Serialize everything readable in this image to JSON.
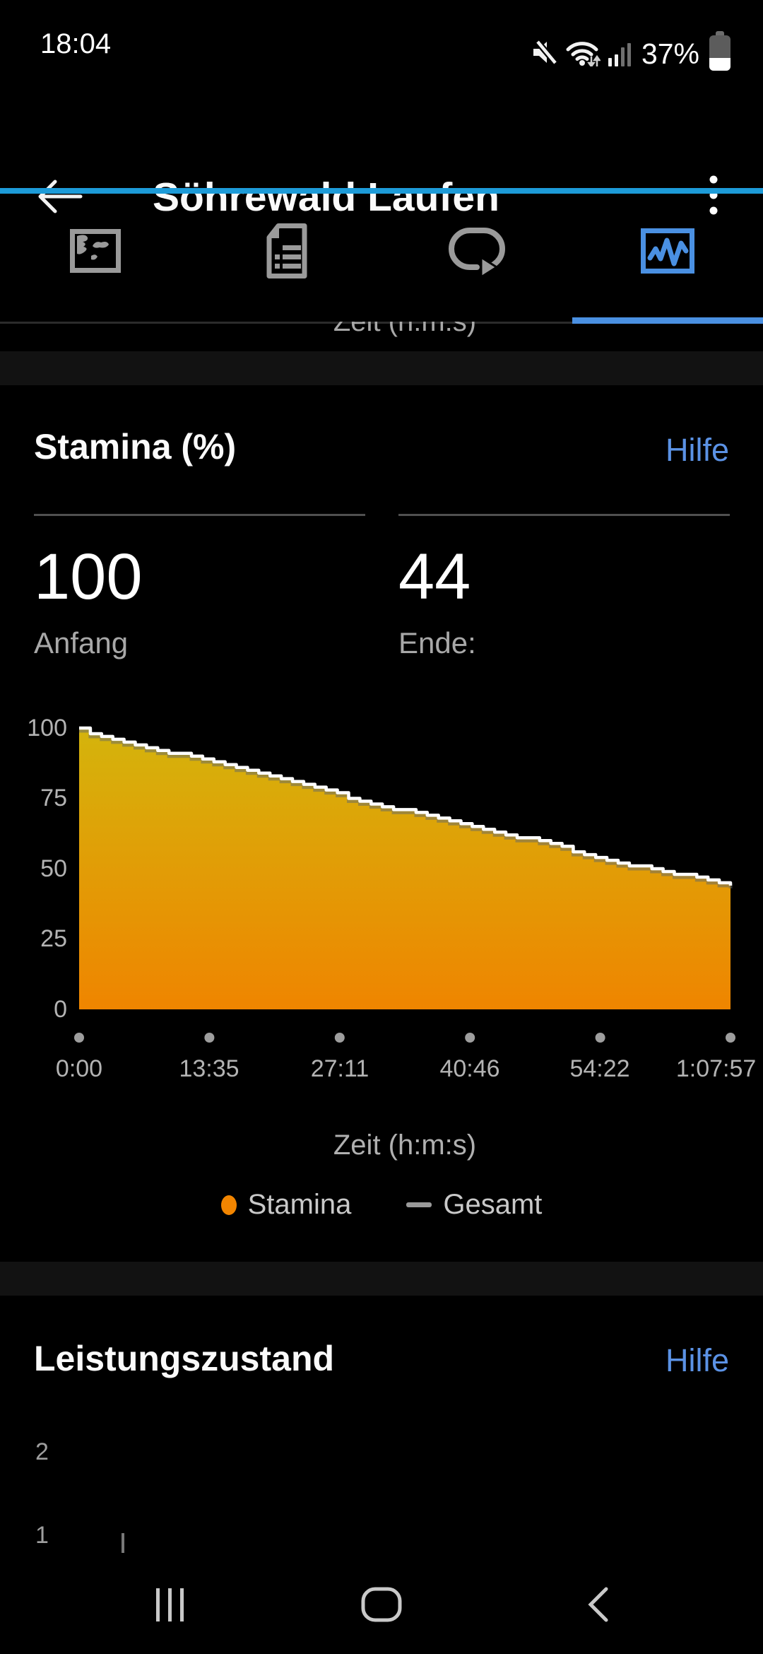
{
  "status_bar": {
    "time": "18:04",
    "battery_label": "37%",
    "battery_percent": 37
  },
  "header": {
    "title": "Söhrewald Laufen"
  },
  "tabs": [
    {
      "name": "map",
      "active": false
    },
    {
      "name": "details",
      "active": false
    },
    {
      "name": "laps",
      "active": false
    },
    {
      "name": "charts",
      "active": true
    }
  ],
  "partial_chart_above": {
    "xlabel": "Zeit (h:m:s)"
  },
  "stamina_section": {
    "title": "Stamina (%)",
    "help_label": "Hilfe",
    "stats": [
      {
        "value": "100",
        "label": "Anfang"
      },
      {
        "value": "44",
        "label": "Ende:"
      }
    ]
  },
  "performance_section": {
    "title": "Leistungszustand",
    "help_label": "Hilfe"
  },
  "chart_data": [
    {
      "type": "area",
      "title": "Stamina (%)",
      "xlabel": "Zeit (h:m:s)",
      "ylim": [
        0,
        100
      ],
      "y_ticks": [
        "100",
        "75",
        "50",
        "25",
        "0"
      ],
      "x_tick_labels": [
        "0:00",
        "13:35",
        "27:11",
        "40:46",
        "54:22",
        "1:07:57"
      ],
      "total_duration": "1:07:57",
      "start_value": 100,
      "end_value": 44,
      "legend": [
        {
          "label": "Stamina",
          "marker": "dot",
          "color": "#f28500"
        },
        {
          "label": "Gesamt",
          "marker": "dash",
          "color": "#9a9a9a"
        }
      ],
      "series": [
        {
          "name": "Stamina",
          "points_t_pct": [
            [
              0.0,
              99.5
            ],
            [
              0.05,
              96.5
            ],
            [
              0.1,
              93.5
            ],
            [
              0.19,
              88.7
            ],
            [
              0.28,
              84
            ],
            [
              0.36,
              79
            ],
            [
              0.45,
              73
            ],
            [
              0.55,
              68
            ],
            [
              0.625,
              64
            ],
            [
              0.7,
              60
            ],
            [
              0.775,
              55.5
            ],
            [
              0.85,
              51
            ],
            [
              0.925,
              48
            ],
            [
              1.0,
              44
            ]
          ]
        }
      ],
      "fill_gradient": [
        "#d4b40c",
        "#ef8500"
      ],
      "line_color": "#ffffff",
      "grid": false,
      "legend_position": "bottom"
    },
    {
      "type": "line",
      "title": "Leistungszustand",
      "visible_y_ticks": [
        "2",
        "1"
      ]
    }
  ],
  "colors": {
    "background": "#000000",
    "separator_band": "#121212",
    "header_accent": "#1d9bd8",
    "tab_active": "#4a90e2",
    "link_blue": "#5b92e5",
    "inactive_icon": "#9a9a9a",
    "axis_text": "#b3b3b3"
  }
}
